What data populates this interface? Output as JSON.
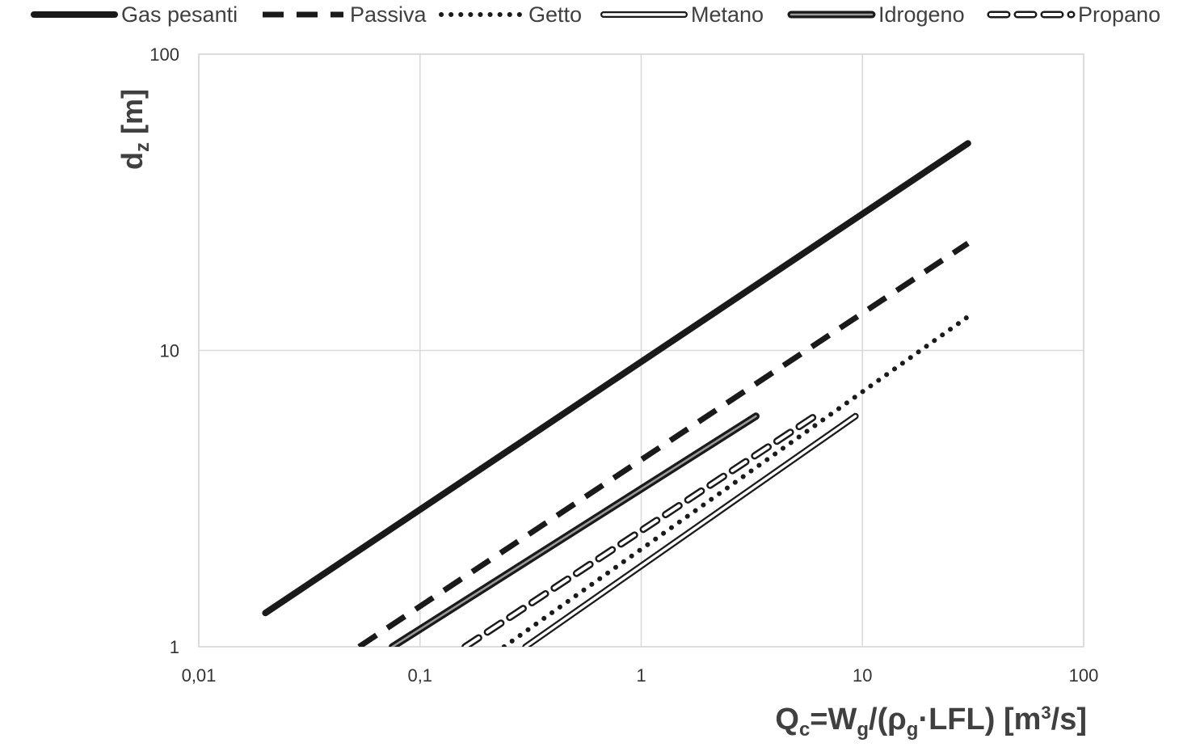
{
  "chart_data": {
    "type": "line",
    "xlabel_parts": [
      "Q",
      "c",
      "=W",
      "g",
      "/(ρ",
      "g",
      "·LFL) [m",
      "3",
      "/s]"
    ],
    "ylabel_parts": [
      "d",
      "z",
      " [m]"
    ],
    "x_scale": "log",
    "y_scale": "log",
    "xlim": [
      0.01,
      100
    ],
    "ylim": [
      1,
      100
    ],
    "x_ticks": [
      0.01,
      0.1,
      1,
      10,
      100
    ],
    "x_tick_labels": [
      "0,01",
      "0,1",
      "1",
      "10",
      "100"
    ],
    "y_ticks": [
      1,
      10,
      100
    ],
    "y_tick_labels": [
      "1",
      "10",
      "100"
    ],
    "grid": true,
    "legend_position": "top",
    "series": [
      {
        "name": "Gas pesanti",
        "style": "solid-thick",
        "x": [
          0.02,
          30
        ],
        "y": [
          1.3,
          50
        ]
      },
      {
        "name": "Passiva",
        "style": "dashed",
        "x": [
          0.053,
          30
        ],
        "y": [
          1.0,
          23
        ]
      },
      {
        "name": "Getto",
        "style": "dotted",
        "x": [
          0.24,
          30
        ],
        "y": [
          1.0,
          13
        ]
      },
      {
        "name": "Metano",
        "style": "double-line",
        "x": [
          0.3,
          9.3
        ],
        "y": [
          1.0,
          6.0
        ]
      },
      {
        "name": "Idrogeno",
        "style": "double-line-thick",
        "x": [
          0.075,
          3.3
        ],
        "y": [
          1.0,
          6.0
        ]
      },
      {
        "name": "Propano",
        "style": "double-dashed",
        "x": [
          0.16,
          6.3
        ],
        "y": [
          1.0,
          6.1
        ]
      }
    ]
  },
  "colors": {
    "series": "#1a1a1a",
    "grid": "#d9d9d9",
    "text": "#404040"
  }
}
